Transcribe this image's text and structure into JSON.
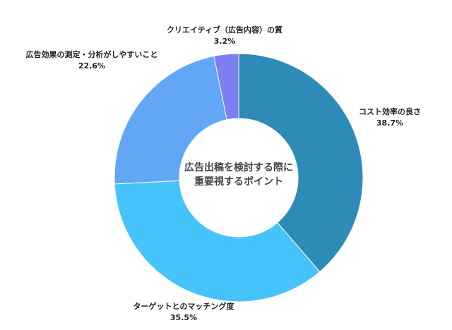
{
  "chart_data": {
    "type": "pie",
    "variant": "donut",
    "center_text": [
      "広告出稿を検討する際に",
      "重要視するポイント"
    ],
    "slices": [
      {
        "label": "コスト効率の良さ",
        "value": 38.7,
        "value_label": "38.7%",
        "color": "#2e8bb8"
      },
      {
        "label": "ターゲットとのマッチング度",
        "value": 35.5,
        "value_label": "35.5%",
        "color": "#47c3fb"
      },
      {
        "label": "広告効果の測定・分析がしやすいこと",
        "value": 22.6,
        "value_label": "22.6%",
        "color": "#62a6f6"
      },
      {
        "label": "クリエイティブ（広告内容）の質",
        "value": 3.2,
        "value_label": "3.2%",
        "color": "#7b7ff0"
      }
    ]
  }
}
